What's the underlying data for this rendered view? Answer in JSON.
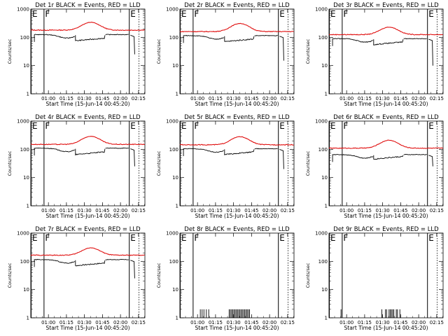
{
  "colors": {
    "events": "#000000",
    "lld": "#e01010",
    "background": "#ffffff"
  },
  "chart_data": {
    "type": "line",
    "x_axis_label": "Start Time (15-Jun-14 00:45:20)",
    "x_ticks": [
      "01:00",
      "01:15",
      "01:30",
      "01:45",
      "02:00",
      "02:15"
    ],
    "y_axis_label": "Counts/sec",
    "y_scale": "log",
    "y_ticks": [
      "1",
      "10",
      "100",
      "1000"
    ],
    "ylim": [
      1,
      1000
    ],
    "xlim_minutes_after_start": [
      0,
      95
    ],
    "grid": false,
    "interval_markers": [
      {
        "label": "E",
        "minute": 0,
        "style": "solid"
      },
      {
        "label": "F",
        "minute": 11,
        "style": "solid"
      },
      {
        "label": "E",
        "minute": 82,
        "style": "solid"
      },
      {
        "label": "",
        "minute": 90,
        "style": "dotted"
      }
    ],
    "panels": [
      {
        "title": "Det 1r BLACK = Events, RED = LLD",
        "kind": "continuous",
        "lld": {
          "base": 180,
          "bump_peak": 340
        },
        "events": {
          "base": 125,
          "dip": 75,
          "end_drop": 25
        }
      },
      {
        "title": "Det 2r BLACK = Events, RED = LLD",
        "kind": "continuous",
        "lld": {
          "base": 160,
          "bump_peak": 310
        },
        "events": {
          "base": 115,
          "dip": 70,
          "end_drop": 15
        }
      },
      {
        "title": "Det 3r BLACK = Events, RED = LLD",
        "kind": "continuous",
        "lld": {
          "base": 125,
          "bump_peak": 230
        },
        "events": {
          "base": 90,
          "dip": 55,
          "end_drop": 10
        }
      },
      {
        "title": "Det 4r BLACK = Events, RED = LLD",
        "kind": "continuous",
        "lld": {
          "base": 150,
          "bump_peak": 290
        },
        "events": {
          "base": 110,
          "dip": 65,
          "end_drop": 25
        }
      },
      {
        "title": "Det 5r BLACK = Events, RED = LLD",
        "kind": "continuous",
        "lld": {
          "base": 145,
          "bump_peak": 280
        },
        "events": {
          "base": 105,
          "dip": 65,
          "end_drop": 20
        }
      },
      {
        "title": "Det 6r BLACK = Events, RED = LLD",
        "kind": "continuous",
        "lld": {
          "base": 110,
          "bump_peak": 210
        },
        "events": {
          "base": 65,
          "dip": 45,
          "end_drop": 25
        }
      },
      {
        "title": "Det 7r BLACK = Events, RED = LLD",
        "kind": "continuous",
        "lld": {
          "base": 165,
          "bump_peak": 300
        },
        "events": {
          "base": 115,
          "dip": 70,
          "end_drop": 25
        }
      },
      {
        "title": "Det 8r BLACK = Events, RED = LLD",
        "kind": "sparse",
        "spike_value": 2,
        "spike_minutes": [
          17,
          18.5,
          20,
          22,
          24,
          41,
          42,
          43,
          44,
          45,
          46,
          47,
          48,
          49,
          50,
          51,
          52,
          53,
          54,
          55,
          56,
          57,
          58
        ]
      },
      {
        "title": "Det 9r BLACK = Events, RED = LLD",
        "kind": "sparse",
        "spike_value": 2,
        "spike_minutes": [
          10,
          44,
          47,
          48,
          50,
          51,
          52,
          53,
          54,
          56,
          57,
          59
        ]
      }
    ]
  }
}
